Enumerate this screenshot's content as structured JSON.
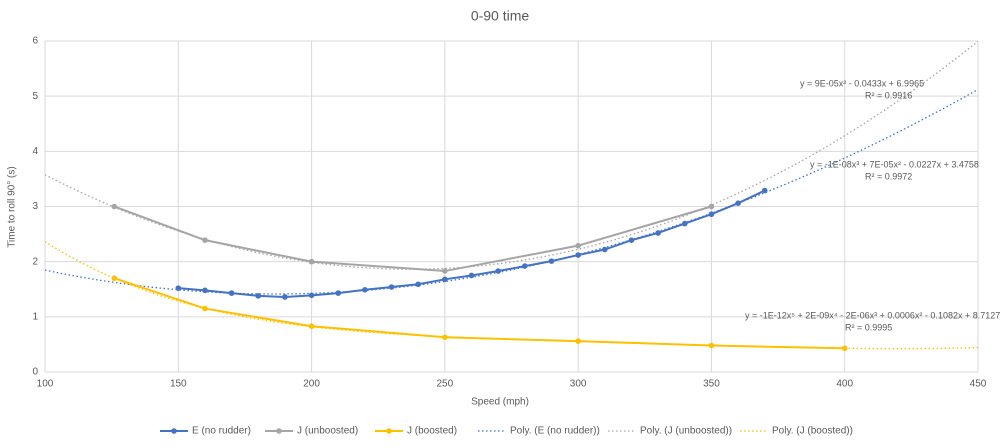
{
  "chart_data": {
    "type": "scatter",
    "title": "0-90 time",
    "x_label": "Speed (mph)",
    "y_label": "Time to roll 90° (s)",
    "xlim": [
      100,
      450
    ],
    "xticks": [
      100,
      150,
      200,
      250,
      300,
      350,
      400,
      450
    ],
    "ylim": [
      0,
      6
    ],
    "yticks": [
      0,
      1,
      2,
      3,
      4,
      5,
      6
    ],
    "grid": true,
    "legend": "bottom",
    "series": [
      {
        "name": "E (no rudder)",
        "color": "#4472c4",
        "x": [
          150,
          160,
          170,
          180,
          190,
          200,
          210,
          220,
          230,
          240,
          250,
          260,
          270,
          280,
          290,
          300,
          310,
          320,
          330,
          340,
          350,
          360,
          370
        ],
        "values": [
          1.52,
          1.48,
          1.43,
          1.38,
          1.36,
          1.39,
          1.43,
          1.49,
          1.54,
          1.59,
          1.68,
          1.75,
          1.83,
          1.92,
          2.01,
          2.12,
          2.22,
          2.39,
          2.52,
          2.69,
          2.86,
          3.06,
          3.29
        ],
        "trendline": {
          "name": "Poly. (E (no rudder))",
          "order": 3,
          "equation": "y = -1E-08x³ + 7E-05x² - 0.0227x + 3.4758",
          "r2": "R² = 0.9972"
        }
      },
      {
        "name": "J (unboosted)",
        "color": "#a5a5a5",
        "x": [
          126,
          160,
          200,
          250,
          300,
          350
        ],
        "values": [
          3.0,
          2.39,
          2.0,
          1.83,
          2.29,
          3.0
        ],
        "trendline": {
          "name": "Poly. (J (unboosted))",
          "order": 2,
          "equation": "y = 9E-05x² - 0.0433x + 6.9965",
          "r2": "R² = 0.9916"
        }
      },
      {
        "name": "J (boosted)",
        "color": "#ffc000",
        "x": [
          126,
          160,
          200,
          250,
          300,
          350,
          400
        ],
        "values": [
          1.7,
          1.15,
          0.83,
          0.63,
          0.56,
          0.48,
          0.43
        ],
        "trendline": {
          "name": "Poly. (J (boosted))",
          "order": 5,
          "equation": "y = -1E-12x⁵ + 2E-09x⁴ - 2E-06x³ + 0.0006x² - 0.1082x + 8.7127",
          "r2": "R² = 0.9995"
        }
      }
    ]
  }
}
